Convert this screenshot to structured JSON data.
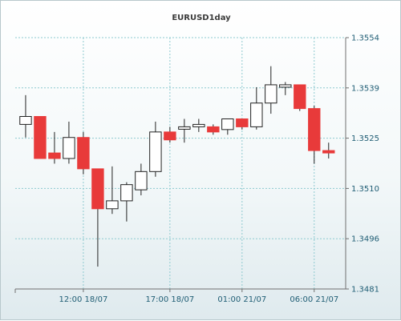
{
  "chart_data": {
    "type": "candlestick",
    "title": "EURUSD1day",
    "ylim": [
      1.3481,
      1.3554
    ],
    "y_ticks": [
      "1.3554",
      "1.3539",
      "1.3525",
      "1.3510",
      "1.3496",
      "1.3481"
    ],
    "x_ticks": [
      "12:00 18/07",
      "17:00 18/07",
      "01:00 21/07",
      "06:00 21/07"
    ],
    "grid": true,
    "colors": {
      "bull_body": "#ffffff",
      "bear_body": "#e83a3a",
      "wick": "#222222",
      "grid": "#8ecad0"
    },
    "candles": [
      {
        "open": 1.35288,
        "high": 1.35373,
        "low": 1.3525,
        "close": 1.35311,
        "direction": "up"
      },
      {
        "open": 1.35311,
        "high": 1.35311,
        "low": 1.35189,
        "close": 1.35189,
        "direction": "down"
      },
      {
        "open": 1.35205,
        "high": 1.35266,
        "low": 1.35174,
        "close": 1.35189,
        "direction": "down"
      },
      {
        "open": 1.35189,
        "high": 1.35296,
        "low": 1.35174,
        "close": 1.3525,
        "direction": "up"
      },
      {
        "open": 1.3525,
        "high": 1.35266,
        "low": 1.35143,
        "close": 1.35159,
        "direction": "down"
      },
      {
        "open": 1.35159,
        "high": 1.35159,
        "low": 1.34875,
        "close": 1.35043,
        "direction": "down"
      },
      {
        "open": 1.35043,
        "high": 1.35166,
        "low": 1.35028,
        "close": 1.35066,
        "direction": "up"
      },
      {
        "open": 1.35066,
        "high": 1.3512,
        "low": 1.35006,
        "close": 1.35113,
        "direction": "up"
      },
      {
        "open": 1.35098,
        "high": 1.35174,
        "low": 1.35082,
        "close": 1.35151,
        "direction": "up"
      },
      {
        "open": 1.35151,
        "high": 1.35296,
        "low": 1.35136,
        "close": 1.35266,
        "direction": "up"
      },
      {
        "open": 1.35266,
        "high": 1.35281,
        "low": 1.35235,
        "close": 1.35243,
        "direction": "down"
      },
      {
        "open": 1.35281,
        "high": 1.35304,
        "low": 1.35235,
        "close": 1.35281,
        "direction": "up"
      },
      {
        "open": 1.35281,
        "high": 1.35304,
        "low": 1.35266,
        "close": 1.35288,
        "direction": "up"
      },
      {
        "open": 1.35281,
        "high": 1.35288,
        "low": 1.35258,
        "close": 1.35266,
        "direction": "down"
      },
      {
        "open": 1.35273,
        "high": 1.35304,
        "low": 1.35258,
        "close": 1.35304,
        "direction": "up"
      },
      {
        "open": 1.35304,
        "high": 1.35304,
        "low": 1.35273,
        "close": 1.35281,
        "direction": "down"
      },
      {
        "open": 1.35281,
        "high": 1.35396,
        "low": 1.35273,
        "close": 1.3535,
        "direction": "up"
      },
      {
        "open": 1.3535,
        "high": 1.35457,
        "low": 1.35319,
        "close": 1.35403,
        "direction": "up"
      },
      {
        "open": 1.35403,
        "high": 1.35411,
        "low": 1.35373,
        "close": 1.35403,
        "direction": "up"
      },
      {
        "open": 1.35403,
        "high": 1.35403,
        "low": 1.35327,
        "close": 1.35334,
        "direction": "down"
      },
      {
        "open": 1.35334,
        "high": 1.35342,
        "low": 1.35174,
        "close": 1.35212,
        "direction": "down"
      },
      {
        "open": 1.35212,
        "high": 1.35235,
        "low": 1.35189,
        "close": 1.35205,
        "direction": "down"
      }
    ]
  }
}
